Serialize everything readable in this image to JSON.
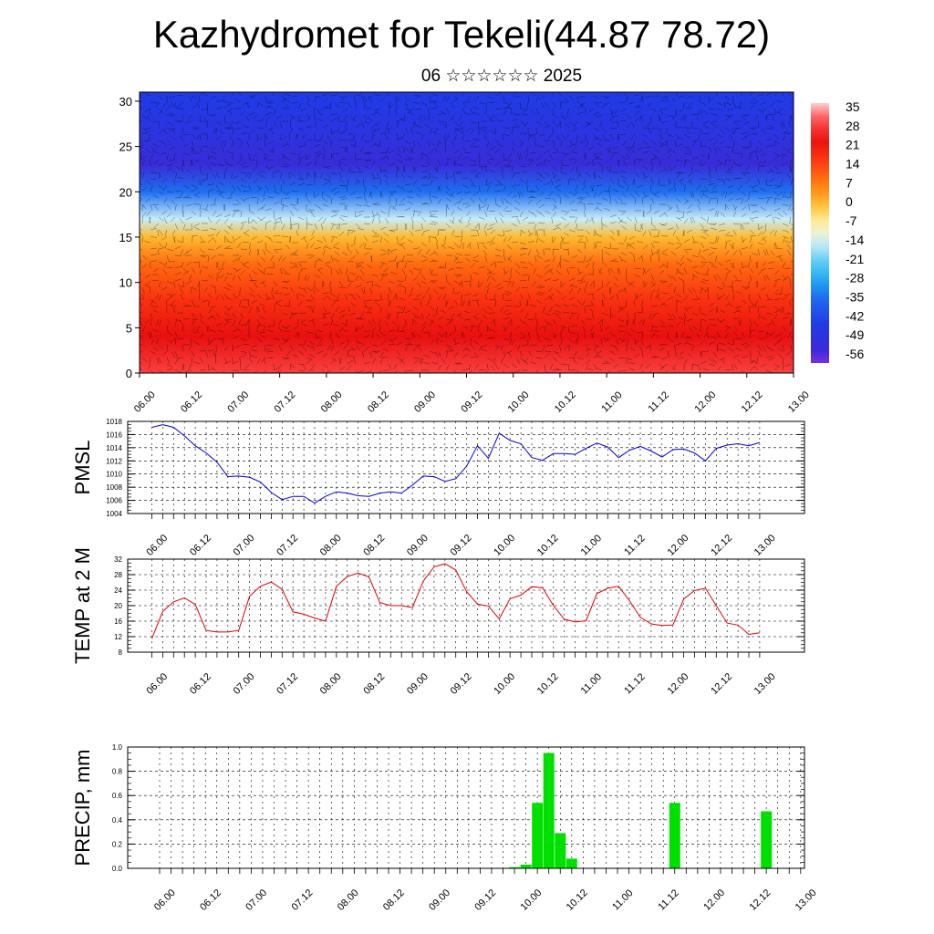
{
  "title": "Kazhydromet for Tekeli(44.87 78.72)",
  "subtitle": "06 ☆☆☆☆☆☆ 2025",
  "time_labels": [
    "06.00",
    "06.12",
    "07.00",
    "07.12",
    "08.00",
    "08.12",
    "09.00",
    "09.12",
    "10.00",
    "10.12",
    "11.00",
    "11.12",
    "12.00",
    "12.12",
    "13.00"
  ],
  "colors": {
    "temp_line": "#e00000",
    "pmsl_line": "#0000e0",
    "precip_bar": "#00e000"
  },
  "chart_data": [
    {
      "type": "heatmap",
      "title": "",
      "ylabel": "",
      "y_ticks": [
        0,
        5,
        10,
        15,
        20,
        25,
        30
      ],
      "ylim": [
        0,
        31
      ],
      "colorbar_labels": [
        "35",
        "28",
        "21",
        "14",
        "7",
        "0",
        "-7",
        "-14",
        "-21",
        "-28",
        "-35",
        "-42",
        "-49",
        "-56"
      ],
      "colorbar_range": [
        -60,
        38
      ],
      "temperature_profile": {
        "heights": [
          0,
          4,
          8,
          12,
          15,
          17,
          20,
          23,
          26,
          31
        ],
        "values": [
          30,
          24,
          18,
          10,
          0,
          -15,
          -35,
          -55,
          -50,
          -45
        ]
      },
      "overlay": "wind barbs"
    },
    {
      "type": "line",
      "ylabel": "PMSL",
      "ylim": [
        1004,
        1018
      ],
      "y_ticks": [
        1004,
        1006,
        1008,
        1010,
        1012,
        1014,
        1016,
        1018
      ],
      "series": [
        {
          "values": [
            1017.1,
            1017.5,
            1017.1,
            1015.8,
            1014.3,
            1013.2,
            1011.8,
            1009.6,
            1009.7,
            1009.5,
            1008.8,
            1007.2,
            1006.1,
            1006.6,
            1006.6,
            1005.6,
            1006.6,
            1007.3,
            1007.1,
            1006.7,
            1006.6,
            1007.1,
            1007.3,
            1007.1,
            1008.3,
            1009.7,
            1009.6,
            1008.9,
            1009.3,
            1011.2,
            1014.3,
            1012.4,
            1016.2,
            1015.1,
            1014.6,
            1012.5,
            1012.1,
            1013.1,
            1013.1,
            1013.0,
            1013.9,
            1014.7,
            1014.1,
            1012.5,
            1013.6,
            1014.2,
            1013.5,
            1012.6,
            1013.7,
            1013.8,
            1013.2,
            1012.0,
            1013.9,
            1014.4,
            1014.6,
            1014.3,
            1014.8
          ]
        }
      ]
    },
    {
      "type": "line",
      "ylabel": "TEMP at 2 M",
      "ylim": [
        8,
        32
      ],
      "y_ticks": [
        8,
        12,
        16,
        20,
        24,
        28,
        32
      ],
      "series": [
        {
          "values": [
            11.5,
            18.5,
            21.0,
            22.0,
            20.3,
            13.6,
            13.2,
            13.2,
            13.6,
            22.4,
            25.0,
            26.1,
            24.2,
            18.4,
            17.8,
            16.8,
            16.0,
            25.0,
            27.5,
            28.4,
            27.4,
            20.8,
            20.0,
            20.0,
            19.5,
            26.3,
            30.0,
            30.8,
            29.2,
            23.6,
            20.4,
            19.9,
            16.6,
            21.8,
            22.7,
            24.9,
            24.6,
            20.0,
            16.5,
            15.8,
            16.1,
            23.1,
            24.5,
            25.0,
            21.3,
            17.0,
            15.3,
            14.9,
            15.0,
            21.7,
            23.9,
            24.5,
            20.0,
            15.5,
            15.0,
            12.6,
            13.0
          ]
        }
      ]
    },
    {
      "type": "bar",
      "ylabel": "PRECIP, mm",
      "ylim": [
        0,
        1.0
      ],
      "y_ticks": [
        "0.0",
        "0.2",
        "0.4",
        "0.6",
        "0.8",
        "1.0"
      ],
      "bars": [
        {
          "x": 31,
          "value": 0.01
        },
        {
          "x": 32,
          "value": 0.03
        },
        {
          "x": 33,
          "value": 0.54
        },
        {
          "x": 34,
          "value": 0.95
        },
        {
          "x": 35,
          "value": 0.29
        },
        {
          "x": 36,
          "value": 0.08
        },
        {
          "x": 45,
          "value": 0.54
        },
        {
          "x": 53,
          "value": 0.47
        }
      ]
    }
  ]
}
